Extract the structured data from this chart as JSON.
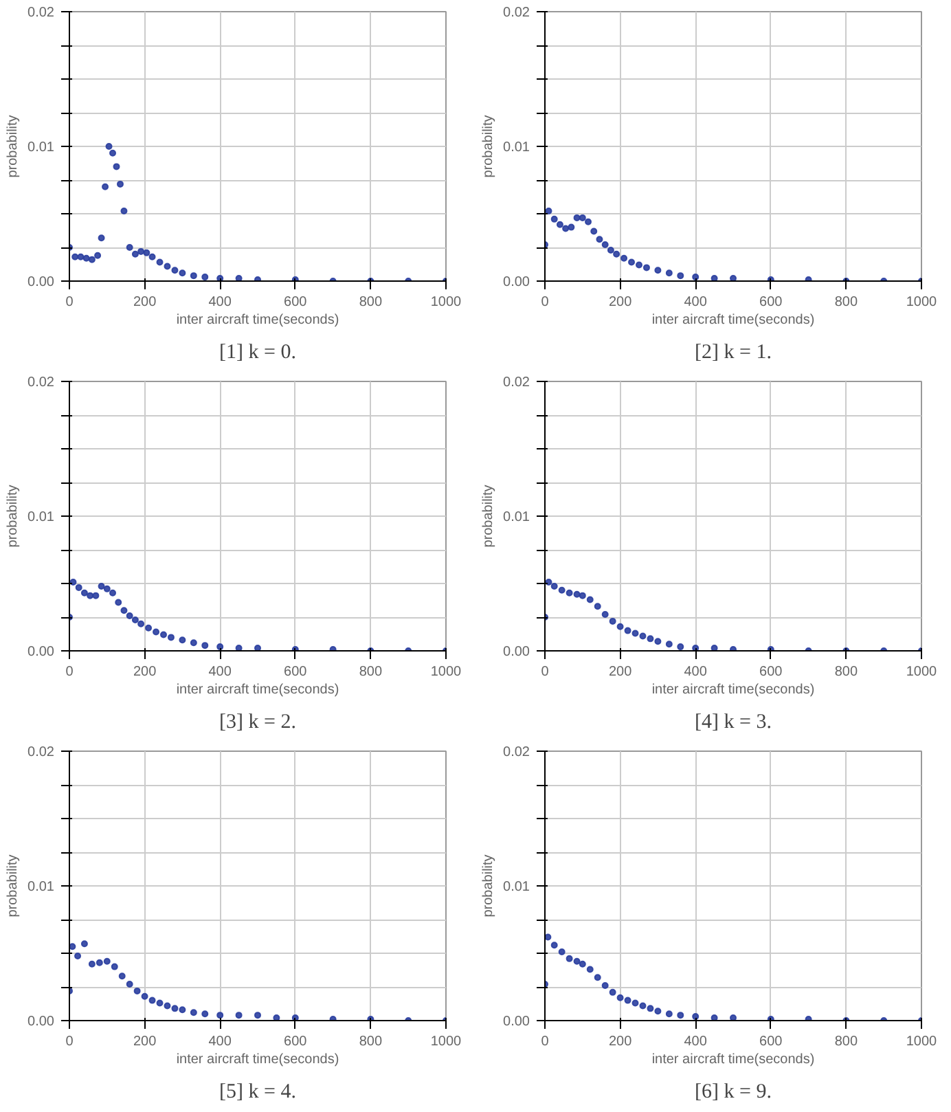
{
  "chart_data": [
    {
      "type": "scatter",
      "title": "[1] k = 0.",
      "xlabel": "inter aircraft time(seconds)",
      "ylabel": "probability",
      "marker": "circle",
      "grid": true,
      "xlim": [
        0,
        1000
      ],
      "ylim": [
        0,
        0.02
      ],
      "xticks": [
        0,
        200,
        400,
        600,
        800,
        1000
      ],
      "yticks": [
        {
          "value": 0,
          "label": "0.00"
        },
        {
          "value": 0.0025,
          "label": null
        },
        {
          "value": 0.005,
          "label": null
        },
        {
          "value": 0.0075,
          "label": null
        },
        {
          "value": 0.01,
          "label": "0.01"
        },
        {
          "value": 0.0125,
          "label": null
        },
        {
          "value": 0.015,
          "label": null
        },
        {
          "value": 0.0175,
          "label": null
        },
        {
          "value": 0.02,
          "label": "0.02"
        }
      ],
      "x": [
        0,
        15,
        30,
        45,
        60,
        75,
        85,
        95,
        105,
        115,
        125,
        135,
        145,
        160,
        175,
        190,
        205,
        220,
        240,
        260,
        280,
        300,
        330,
        360,
        400,
        450,
        500,
        600,
        700,
        800,
        900,
        1000
      ],
      "series": [
        {
          "color": "#2b3fa0",
          "values": [
            0.0025,
            0.0018,
            0.0018,
            0.0017,
            0.0016,
            0.0019,
            0.0032,
            0.007,
            0.01,
            0.0095,
            0.0085,
            0.0072,
            0.0052,
            0.0025,
            0.002,
            0.0022,
            0.0021,
            0.0018,
            0.0014,
            0.0011,
            0.0008,
            0.0006,
            0.0004,
            0.0003,
            0.0002,
            0.0002,
            0.0001,
            0.0001,
            0.0,
            0.0,
            0.0,
            0.0
          ]
        }
      ]
    },
    {
      "type": "scatter",
      "title": "[2] k = 1.",
      "xlabel": "inter aircraft time(seconds)",
      "ylabel": "probability",
      "marker": "circle",
      "grid": true,
      "xlim": [
        0,
        1000
      ],
      "ylim": [
        0,
        0.02
      ],
      "xticks": [
        0,
        200,
        400,
        600,
        800,
        1000
      ],
      "yticks": [
        {
          "value": 0,
          "label": "0.00"
        },
        {
          "value": 0.0025,
          "label": null
        },
        {
          "value": 0.005,
          "label": null
        },
        {
          "value": 0.0075,
          "label": null
        },
        {
          "value": 0.01,
          "label": "0.01"
        },
        {
          "value": 0.0125,
          "label": null
        },
        {
          "value": 0.015,
          "label": null
        },
        {
          "value": 0.0175,
          "label": null
        },
        {
          "value": 0.02,
          "label": "0.02"
        }
      ],
      "x": [
        0,
        10,
        25,
        40,
        55,
        70,
        85,
        100,
        115,
        130,
        145,
        160,
        175,
        190,
        210,
        230,
        250,
        270,
        300,
        330,
        360,
        400,
        450,
        500,
        600,
        700,
        800,
        900,
        1000
      ],
      "series": [
        {
          "color": "#2b3fa0",
          "values": [
            0.0027,
            0.0052,
            0.0046,
            0.0042,
            0.0039,
            0.004,
            0.0047,
            0.0047,
            0.0044,
            0.0037,
            0.0031,
            0.0027,
            0.0023,
            0.002,
            0.0017,
            0.0014,
            0.0012,
            0.001,
            0.0008,
            0.0006,
            0.0004,
            0.0003,
            0.0002,
            0.0002,
            0.0001,
            0.0001,
            0.0,
            0.0,
            0.0
          ]
        }
      ]
    },
    {
      "type": "scatter",
      "title": "[3] k = 2.",
      "xlabel": "inter aircraft time(seconds)",
      "ylabel": "probability",
      "marker": "circle",
      "grid": true,
      "xlim": [
        0,
        1000
      ],
      "ylim": [
        0,
        0.02
      ],
      "xticks": [
        0,
        200,
        400,
        600,
        800,
        1000
      ],
      "yticks": [
        {
          "value": 0,
          "label": "0.00"
        },
        {
          "value": 0.0025,
          "label": null
        },
        {
          "value": 0.005,
          "label": null
        },
        {
          "value": 0.0075,
          "label": null
        },
        {
          "value": 0.01,
          "label": "0.01"
        },
        {
          "value": 0.0125,
          "label": null
        },
        {
          "value": 0.015,
          "label": null
        },
        {
          "value": 0.0175,
          "label": null
        },
        {
          "value": 0.02,
          "label": "0.02"
        }
      ],
      "x": [
        0,
        10,
        25,
        40,
        55,
        70,
        85,
        100,
        115,
        130,
        145,
        160,
        175,
        190,
        210,
        230,
        250,
        270,
        300,
        330,
        360,
        400,
        450,
        500,
        600,
        700,
        800,
        900,
        1000
      ],
      "series": [
        {
          "color": "#2b3fa0",
          "values": [
            0.0025,
            0.0051,
            0.0047,
            0.0043,
            0.0041,
            0.0041,
            0.0048,
            0.0046,
            0.0043,
            0.0036,
            0.003,
            0.0026,
            0.0023,
            0.002,
            0.0017,
            0.0014,
            0.0012,
            0.001,
            0.0008,
            0.0006,
            0.0004,
            0.0003,
            0.0002,
            0.0002,
            0.0001,
            0.0001,
            0.0,
            0.0,
            0.0
          ]
        }
      ]
    },
    {
      "type": "scatter",
      "title": "[4] k = 3.",
      "xlabel": "inter aircraft time(seconds)",
      "ylabel": "probability",
      "marker": "circle",
      "grid": true,
      "xlim": [
        0,
        1000
      ],
      "ylim": [
        0,
        0.02
      ],
      "xticks": [
        0,
        200,
        400,
        600,
        800,
        1000
      ],
      "yticks": [
        {
          "value": 0,
          "label": "0.00"
        },
        {
          "value": 0.0025,
          "label": null
        },
        {
          "value": 0.005,
          "label": null
        },
        {
          "value": 0.0075,
          "label": null
        },
        {
          "value": 0.01,
          "label": "0.01"
        },
        {
          "value": 0.0125,
          "label": null
        },
        {
          "value": 0.015,
          "label": null
        },
        {
          "value": 0.0175,
          "label": null
        },
        {
          "value": 0.02,
          "label": "0.02"
        }
      ],
      "x": [
        0,
        10,
        25,
        45,
        65,
        85,
        100,
        120,
        140,
        160,
        180,
        200,
        220,
        240,
        260,
        280,
        300,
        330,
        360,
        400,
        450,
        500,
        600,
        700,
        800,
        900,
        1000
      ],
      "series": [
        {
          "color": "#2b3fa0",
          "values": [
            0.0025,
            0.0051,
            0.0048,
            0.0045,
            0.0043,
            0.0042,
            0.0041,
            0.0038,
            0.0033,
            0.0027,
            0.0022,
            0.0018,
            0.0015,
            0.0013,
            0.0011,
            0.0009,
            0.0007,
            0.0005,
            0.0003,
            0.0002,
            0.0002,
            0.0001,
            0.0001,
            0.0,
            0.0,
            0.0,
            0.0
          ]
        }
      ]
    },
    {
      "type": "scatter",
      "title": "[5] k = 4.",
      "xlabel": "inter aircraft time(seconds)",
      "ylabel": "probability",
      "marker": "circle",
      "grid": true,
      "xlim": [
        0,
        1000
      ],
      "ylim": [
        0,
        0.02
      ],
      "xticks": [
        0,
        200,
        400,
        600,
        800,
        1000
      ],
      "yticks": [
        {
          "value": 0,
          "label": "0.00"
        },
        {
          "value": 0.0025,
          "label": null
        },
        {
          "value": 0.005,
          "label": null
        },
        {
          "value": 0.0075,
          "label": null
        },
        {
          "value": 0.01,
          "label": "0.01"
        },
        {
          "value": 0.0125,
          "label": null
        },
        {
          "value": 0.015,
          "label": null
        },
        {
          "value": 0.0175,
          "label": null
        },
        {
          "value": 0.02,
          "label": "0.02"
        }
      ],
      "x": [
        0,
        8,
        22,
        40,
        60,
        80,
        100,
        120,
        140,
        160,
        180,
        200,
        220,
        240,
        260,
        280,
        300,
        330,
        360,
        400,
        450,
        500,
        550,
        600,
        700,
        800,
        900,
        1000
      ],
      "series": [
        {
          "color": "#2b3fa0",
          "values": [
            0.0022,
            0.0055,
            0.0048,
            0.0057,
            0.0042,
            0.0043,
            0.0044,
            0.004,
            0.0033,
            0.0027,
            0.0022,
            0.0018,
            0.0015,
            0.0013,
            0.0011,
            0.0009,
            0.0008,
            0.0006,
            0.0005,
            0.0004,
            0.0004,
            0.0004,
            0.0002,
            0.0002,
            0.0001,
            0.0001,
            0.0,
            0.0
          ]
        }
      ]
    },
    {
      "type": "scatter",
      "title": "[6] k = 9.",
      "xlabel": "inter aircraft time(seconds)",
      "ylabel": "probability",
      "marker": "circle",
      "grid": true,
      "xlim": [
        0,
        1000
      ],
      "ylim": [
        0,
        0.02
      ],
      "xticks": [
        0,
        200,
        400,
        600,
        800,
        1000
      ],
      "yticks": [
        {
          "value": 0,
          "label": "0.00"
        },
        {
          "value": 0.0025,
          "label": null
        },
        {
          "value": 0.005,
          "label": null
        },
        {
          "value": 0.0075,
          "label": null
        },
        {
          "value": 0.01,
          "label": "0.01"
        },
        {
          "value": 0.0125,
          "label": null
        },
        {
          "value": 0.015,
          "label": null
        },
        {
          "value": 0.0175,
          "label": null
        },
        {
          "value": 0.02,
          "label": "0.02"
        }
      ],
      "x": [
        0,
        8,
        25,
        45,
        65,
        85,
        100,
        120,
        140,
        160,
        180,
        200,
        220,
        240,
        260,
        280,
        300,
        330,
        360,
        400,
        450,
        500,
        600,
        700,
        800,
        900,
        1000
      ],
      "series": [
        {
          "color": "#2b3fa0",
          "values": [
            0.0027,
            0.0062,
            0.0056,
            0.0051,
            0.0046,
            0.0044,
            0.0042,
            0.0038,
            0.0032,
            0.0026,
            0.0021,
            0.0017,
            0.0015,
            0.0013,
            0.0011,
            0.0009,
            0.0007,
            0.0005,
            0.0004,
            0.0003,
            0.0002,
            0.0002,
            0.0001,
            0.0001,
            0.0,
            0.0,
            0.0
          ]
        }
      ]
    }
  ]
}
